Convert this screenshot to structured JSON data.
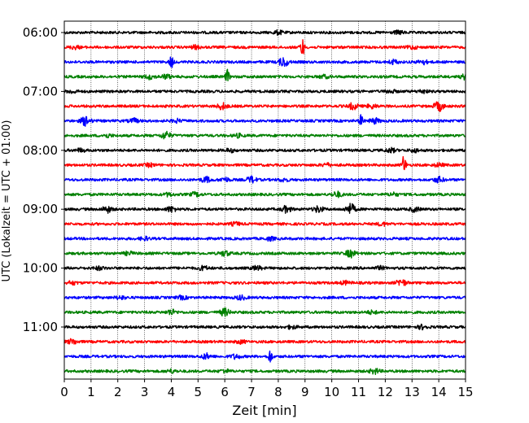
{
  "chart_data": {
    "type": "line",
    "title": "",
    "xlabel": "Zeit  [min]",
    "ylabel": "UTC (Lokalzeit = UTC + 01:00)",
    "xlim": [
      0,
      15
    ],
    "x_ticks": [
      "0",
      "1",
      "2",
      "3",
      "4",
      "5",
      "6",
      "7",
      "8",
      "9",
      "10",
      "11",
      "12",
      "13",
      "14",
      "15"
    ],
    "y_ticks": [
      "06:00",
      "07:00",
      "08:00",
      "09:00",
      "10:00",
      "11:00"
    ],
    "grid": "vertical dotted at each minute",
    "trace_interval_min": 15,
    "trace_colors": [
      "#000000",
      "#ff0000",
      "#0000ff",
      "#008000"
    ],
    "traces": [
      {
        "start": "06:00",
        "color": "#000000",
        "events": [
          [
            8.0,
            0.35
          ],
          [
            12.5,
            0.3
          ]
        ]
      },
      {
        "start": "06:15",
        "color": "#ff0000",
        "events": [
          [
            0.4,
            0.3
          ],
          [
            4.9,
            0.3
          ],
          [
            8.9,
            1.8
          ],
          [
            13.0,
            0.3
          ]
        ]
      },
      {
        "start": "06:30",
        "color": "#0000ff",
        "events": [
          [
            4.0,
            1.2
          ],
          [
            8.2,
            0.9
          ],
          [
            12.3,
            0.4
          ],
          [
            13.4,
            0.4
          ]
        ]
      },
      {
        "start": "06:45",
        "color": "#008000",
        "events": [
          [
            3.2,
            0.4
          ],
          [
            3.8,
            0.4
          ],
          [
            6.1,
            1.3
          ],
          [
            9.7,
            0.3
          ],
          [
            15.0,
            0.5
          ]
        ]
      },
      {
        "start": "07:00",
        "color": "#000000",
        "events": [
          [
            0.3,
            0.3
          ],
          [
            12.2,
            0.3
          ],
          [
            13.4,
            0.3
          ]
        ]
      },
      {
        "start": "07:15",
        "color": "#ff0000",
        "events": [
          [
            5.9,
            0.6
          ],
          [
            10.8,
            0.6
          ],
          [
            11.5,
            0.4
          ],
          [
            14.0,
            0.9
          ]
        ]
      },
      {
        "start": "07:30",
        "color": "#0000ff",
        "events": [
          [
            0.8,
            0.9
          ],
          [
            2.6,
            0.4
          ],
          [
            4.2,
            0.3
          ],
          [
            11.1,
            1.1
          ],
          [
            11.6,
            0.5
          ]
        ]
      },
      {
        "start": "07:45",
        "color": "#008000",
        "events": [
          [
            3.8,
            0.7
          ],
          [
            1.6,
            0.3
          ],
          [
            6.5,
            0.3
          ]
        ]
      },
      {
        "start": "08:00",
        "color": "#000000",
        "events": [
          [
            0.6,
            0.3
          ],
          [
            6.2,
            0.3
          ],
          [
            12.2,
            0.4
          ],
          [
            13.1,
            0.3
          ]
        ]
      },
      {
        "start": "08:15",
        "color": "#ff0000",
        "events": [
          [
            3.2,
            0.3
          ],
          [
            9.8,
            0.3
          ],
          [
            12.7,
            2.0
          ],
          [
            14.0,
            0.3
          ]
        ]
      },
      {
        "start": "08:30",
        "color": "#0000ff",
        "events": [
          [
            5.3,
            0.5
          ],
          [
            6.0,
            0.4
          ],
          [
            7.0,
            0.6
          ],
          [
            8.2,
            0.3
          ],
          [
            14.0,
            0.5
          ]
        ]
      },
      {
        "start": "08:45",
        "color": "#008000",
        "events": [
          [
            3.9,
            0.3
          ],
          [
            4.9,
            0.4
          ],
          [
            10.2,
            0.5
          ],
          [
            12.3,
            0.3
          ]
        ]
      },
      {
        "start": "09:00",
        "color": "#000000",
        "events": [
          [
            1.6,
            0.6
          ],
          [
            4.0,
            0.5
          ],
          [
            8.3,
            0.6
          ],
          [
            9.5,
            0.6
          ],
          [
            10.7,
            1.0
          ],
          [
            13.1,
            0.4
          ]
        ]
      },
      {
        "start": "09:15",
        "color": "#ff0000",
        "events": [
          [
            6.4,
            0.3
          ],
          [
            11.9,
            0.3
          ]
        ]
      },
      {
        "start": "09:30",
        "color": "#0000ff",
        "events": [
          [
            3.0,
            0.3
          ],
          [
            7.7,
            0.3
          ]
        ]
      },
      {
        "start": "09:45",
        "color": "#008000",
        "events": [
          [
            6.0,
            0.5
          ],
          [
            10.7,
            0.7
          ],
          [
            2.4,
            0.3
          ]
        ]
      },
      {
        "start": "10:00",
        "color": "#000000",
        "events": [
          [
            1.3,
            0.3
          ],
          [
            5.2,
            0.4
          ],
          [
            7.2,
            0.4
          ],
          [
            11.8,
            0.3
          ]
        ]
      },
      {
        "start": "10:15",
        "color": "#ff0000",
        "events": [
          [
            0.3,
            0.3
          ],
          [
            12.6,
            0.7
          ],
          [
            10.5,
            0.3
          ]
        ]
      },
      {
        "start": "10:30",
        "color": "#0000ff",
        "events": [
          [
            6.6,
            0.4
          ],
          [
            2.1,
            0.3
          ],
          [
            4.4,
            0.3
          ]
        ]
      },
      {
        "start": "10:45",
        "color": "#008000",
        "events": [
          [
            4.0,
            0.5
          ],
          [
            6.0,
            0.7
          ],
          [
            11.5,
            0.3
          ]
        ]
      },
      {
        "start": "11:00",
        "color": "#000000",
        "events": [
          [
            8.5,
            0.3
          ],
          [
            13.4,
            0.4
          ]
        ]
      },
      {
        "start": "11:15",
        "color": "#ff0000",
        "events": [
          [
            0.3,
            0.5
          ],
          [
            6.6,
            0.3
          ]
        ]
      },
      {
        "start": "11:30",
        "color": "#0000ff",
        "events": [
          [
            5.3,
            0.5
          ],
          [
            6.4,
            0.4
          ],
          [
            7.7,
            1.3
          ]
        ]
      },
      {
        "start": "11:45",
        "color": "#008000",
        "events": [
          [
            11.6,
            0.5
          ],
          [
            4.0,
            0.3
          ],
          [
            6.0,
            0.3
          ]
        ]
      }
    ]
  }
}
